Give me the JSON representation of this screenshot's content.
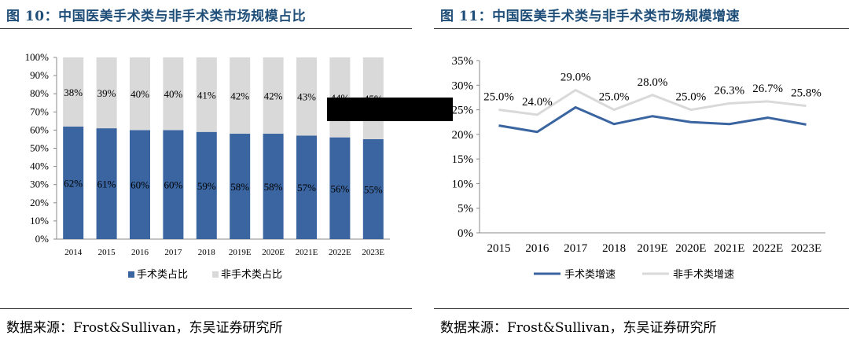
{
  "panels": {
    "left": {
      "title": "图 10：中国医美手术类与非手术类市场规模占比",
      "source": "数据来源：Frost&Sullivan，东吴证券研究所"
    },
    "right": {
      "title": "图 11：中国医美手术类与非手术类市场规模增速",
      "source": "数据来源：Frost&Sullivan，东吴证券研究所"
    }
  },
  "colors": {
    "surgical": "#3a65a0",
    "nonsurgical": "#d9d9d9",
    "title": "#1f4e79"
  },
  "chart_data": [
    {
      "type": "bar",
      "stacked": true,
      "categories": [
        "2014",
        "2015",
        "2016",
        "2017",
        "2018",
        "2019E",
        "2020E",
        "2021E",
        "2022E",
        "2023E"
      ],
      "series": [
        {
          "name": "手术类占比",
          "values": [
            62,
            61,
            60,
            60,
            59,
            58,
            58,
            57,
            56,
            55
          ],
          "labels": [
            "62%",
            "61%",
            "60%",
            "60%",
            "59%",
            "58%",
            "58%",
            "57%",
            "56%",
            "55%"
          ]
        },
        {
          "name": "非手术类占比",
          "values": [
            38,
            39,
            40,
            40,
            41,
            42,
            42,
            43,
            44,
            45
          ],
          "labels": [
            "38%",
            "39%",
            "40%",
            "40%",
            "41%",
            "42%",
            "42%",
            "43%",
            "44%",
            "45%"
          ]
        }
      ],
      "ylim": [
        0,
        100
      ],
      "yticks": [
        "0%",
        "10%",
        "20%",
        "30%",
        "40%",
        "50%",
        "60%",
        "70%",
        "80%",
        "90%",
        "100%"
      ],
      "legend": "bottom",
      "grid": false
    },
    {
      "type": "line",
      "categories": [
        "2015",
        "2016",
        "2017",
        "2018",
        "2019E",
        "2020E",
        "2021E",
        "2022E",
        "2023E"
      ],
      "series": [
        {
          "name": "手术类增速",
          "values": [
            21.8,
            20.5,
            25.5,
            22.1,
            23.7,
            22.5,
            22.1,
            23.4,
            22.0
          ]
        },
        {
          "name": "非手术类增速",
          "values": [
            25.0,
            24.0,
            29.0,
            25.0,
            28.0,
            25.0,
            26.3,
            26.7,
            25.8
          ],
          "labels": [
            "25.0%",
            "24.0%",
            "29.0%",
            "25.0%",
            "28.0%",
            "25.0%",
            "26.3%",
            "26.7%",
            "25.8%"
          ]
        }
      ],
      "ylim": [
        0,
        35
      ],
      "yticks": [
        "0%",
        "5%",
        "10%",
        "15%",
        "20%",
        "25%",
        "30%",
        "35%"
      ],
      "legend": "bottom",
      "grid": false
    }
  ]
}
